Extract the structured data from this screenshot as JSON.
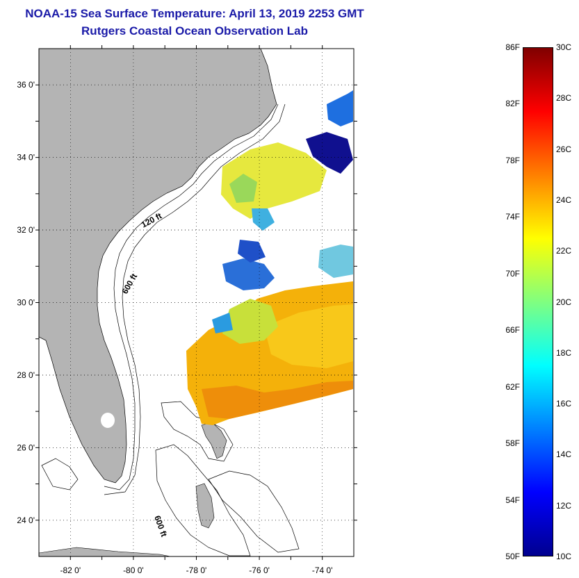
{
  "header": {
    "title": "NOAA-15 Sea Surface Temperature:  April 13, 2019 2253 GMT",
    "subtitle": "Rutgers Coastal Ocean Observation Lab"
  },
  "map": {
    "lon_range": [
      -83,
      -73
    ],
    "lat_range": [
      23,
      37
    ],
    "lat_ticks": [
      {
        "value": 36,
        "label": "36 0'"
      },
      {
        "value": 34,
        "label": "34 0'"
      },
      {
        "value": 32,
        "label": "32 0'"
      },
      {
        "value": 30,
        "label": "30 0'"
      },
      {
        "value": 28,
        "label": "28 0'"
      },
      {
        "value": 26,
        "label": "26 0'"
      },
      {
        "value": 24,
        "label": "24 0'"
      }
    ],
    "lon_ticks": [
      {
        "value": -82,
        "label": "-82 0'"
      },
      {
        "value": -80,
        "label": "-80 0'"
      },
      {
        "value": -78,
        "label": "-78 0'"
      },
      {
        "value": -76,
        "label": "-76 0'"
      },
      {
        "value": -74,
        "label": "-74 0'"
      }
    ],
    "contour_labels": [
      "120 ft",
      "600 ft",
      "600 ft"
    ],
    "grid": "dotted",
    "land_color": "#b4b4b4"
  },
  "colorbar": {
    "fahrenheit_labels": [
      "86F",
      "82F",
      "78F",
      "74F",
      "70F",
      "66F",
      "62F",
      "58F",
      "54F",
      "50F"
    ],
    "celsius_labels": [
      "30C",
      "28C",
      "26C",
      "24C",
      "22C",
      "20C",
      "18C",
      "16C",
      "14C",
      "12C",
      "10C"
    ],
    "range_celsius": [
      10,
      30
    ],
    "colors": [
      "#00008f",
      "#0000ff",
      "#0080ff",
      "#00ffff",
      "#80ff80",
      "#ffff00",
      "#ff8000",
      "#ff0000",
      "#800000"
    ]
  }
}
